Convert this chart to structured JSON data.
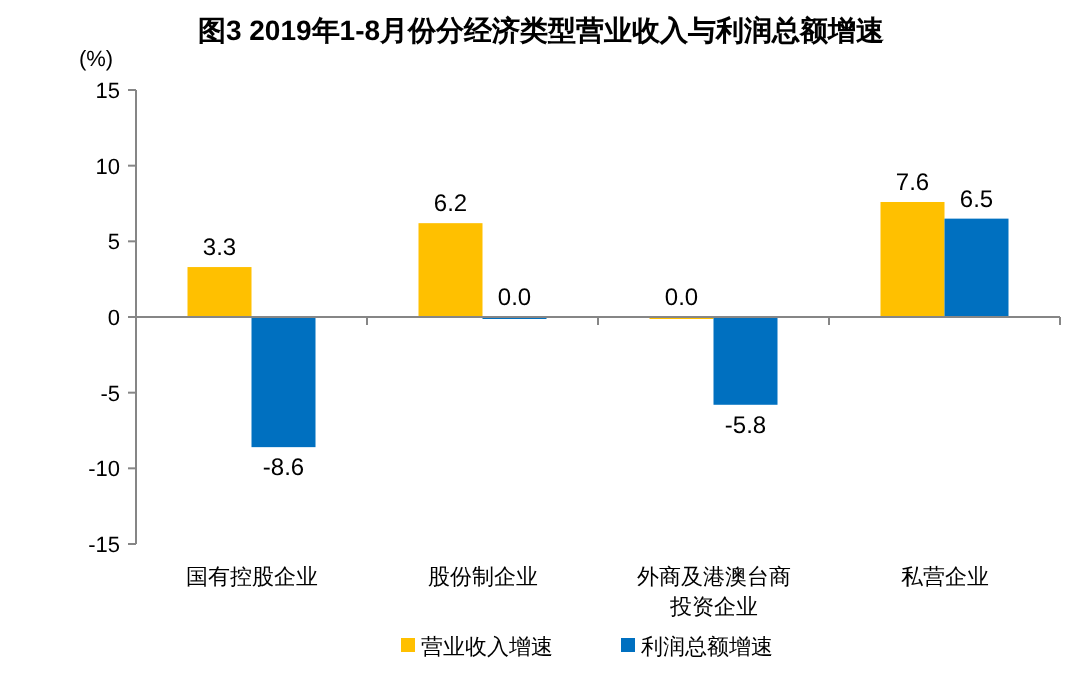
{
  "chart_data": {
    "type": "bar",
    "title": "图3  2019年1-8月份分经济类型营业收入与利润总额增速",
    "ylabel": "(%)",
    "categories": [
      "国有控股企业",
      "股份制企业",
      "外商及港澳台商投资企业",
      "私营企业"
    ],
    "series": [
      {
        "name": "营业收入增速",
        "color": "#ffc000",
        "values": [
          3.3,
          6.2,
          0.0,
          7.6
        ],
        "value_labels": [
          "3.3",
          "6.2",
          "0.0",
          "7.6"
        ]
      },
      {
        "name": "利润总额增速",
        "color": "#0070c0",
        "values": [
          -8.6,
          0.0,
          -5.8,
          6.5
        ],
        "value_labels": [
          "-8.6",
          "0.0",
          "-5.8",
          "6.5"
        ]
      }
    ],
    "ylim": [
      -15,
      15
    ],
    "yticks": [
      -15,
      -10,
      -5,
      0,
      5,
      10,
      15
    ],
    "legend": "bottom"
  }
}
